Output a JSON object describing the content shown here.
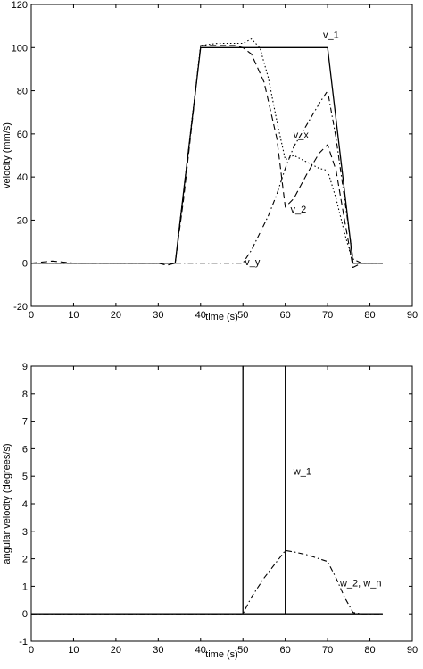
{
  "chart_data": [
    {
      "type": "line",
      "xlabel": "time (s)",
      "ylabel": "velocity (mm/s)",
      "xlim": [
        0,
        90
      ],
      "ylim": [
        -20,
        120
      ],
      "xticks": [
        0,
        10,
        20,
        30,
        40,
        50,
        60,
        70,
        80,
        90
      ],
      "yticks": [
        -20,
        0,
        20,
        40,
        60,
        80,
        100,
        120
      ],
      "grid": false,
      "series": [
        {
          "name": "v_1",
          "style": "solid",
          "x": [
            0,
            34,
            40,
            70,
            76,
            83
          ],
          "y": [
            0,
            0,
            100,
            100,
            0,
            0
          ]
        },
        {
          "name": "v_2",
          "style": "dashed",
          "x": [
            0,
            5,
            10,
            20,
            30,
            32,
            34,
            36,
            40,
            44,
            48,
            50,
            52,
            55,
            58,
            60,
            62,
            65,
            68,
            70,
            72,
            74,
            76,
            78,
            83
          ],
          "y": [
            0,
            1,
            0,
            0,
            0,
            -1,
            0,
            30,
            101,
            101,
            101,
            100,
            97,
            84,
            58,
            26,
            30,
            41,
            51,
            55,
            43,
            20,
            -2,
            0,
            0
          ]
        },
        {
          "name": "v_x",
          "style": "dotted",
          "x": [
            0,
            34,
            40,
            44,
            48,
            50,
            52,
            54,
            56,
            58,
            60,
            62,
            65,
            68,
            70,
            72,
            74,
            76,
            78,
            83
          ],
          "y": [
            0,
            0,
            101,
            102,
            102,
            102,
            104,
            100,
            86,
            66,
            48,
            50,
            47,
            44,
            43,
            30,
            14,
            0,
            0,
            0
          ]
        },
        {
          "name": "v_y",
          "style": "dashdot",
          "x": [
            0,
            34,
            40,
            50,
            52,
            54,
            56,
            58,
            60,
            62,
            65,
            68,
            70,
            72,
            74,
            76,
            78,
            83
          ],
          "y": [
            0,
            0,
            0,
            0,
            6,
            14,
            22,
            32,
            44,
            54,
            64,
            74,
            80,
            58,
            30,
            2,
            0,
            0
          ]
        }
      ],
      "annotations": [
        {
          "text": "v_1",
          "x": 68.5,
          "y": 104.5
        },
        {
          "text": "v_x",
          "x": 61.5,
          "y": 58
        },
        {
          "text": "v_2",
          "x": 60.8,
          "y": 23.5
        },
        {
          "text": "v_y",
          "x": 50,
          "y": -1
        }
      ]
    },
    {
      "type": "line",
      "xlabel": "time (s)",
      "ylabel": "angular velocity (degrees/s)",
      "xlim": [
        0,
        90
      ],
      "ylim": [
        -1,
        9
      ],
      "xticks": [
        0,
        10,
        20,
        30,
        40,
        50,
        60,
        70,
        80,
        90
      ],
      "yticks": [
        -1,
        0,
        1,
        2,
        3,
        4,
        5,
        6,
        7,
        8,
        9
      ],
      "grid": false,
      "series": [
        {
          "name": "w_1",
          "style": "solid",
          "x": [
            0,
            50,
            50,
            50,
            60,
            60,
            60,
            83
          ],
          "y": [
            0,
            0,
            9,
            0,
            0,
            9,
            0,
            0
          ]
        },
        {
          "name": "w_2, w_n",
          "style": "dashdot",
          "x": [
            0,
            34,
            40,
            50,
            52,
            55,
            58,
            60,
            62,
            65,
            68,
            70,
            72,
            74,
            76,
            78,
            83
          ],
          "y": [
            0,
            0,
            0,
            0,
            0.6,
            1.3,
            1.9,
            2.3,
            2.25,
            2.15,
            2.0,
            1.9,
            1.3,
            0.6,
            0.05,
            0,
            0
          ]
        }
      ],
      "annotations": [
        {
          "text": "w_1",
          "x": 61.5,
          "y": 5.05
        },
        {
          "text": "w_2, w_n",
          "x": 72.5,
          "y": 1.0
        }
      ]
    }
  ]
}
